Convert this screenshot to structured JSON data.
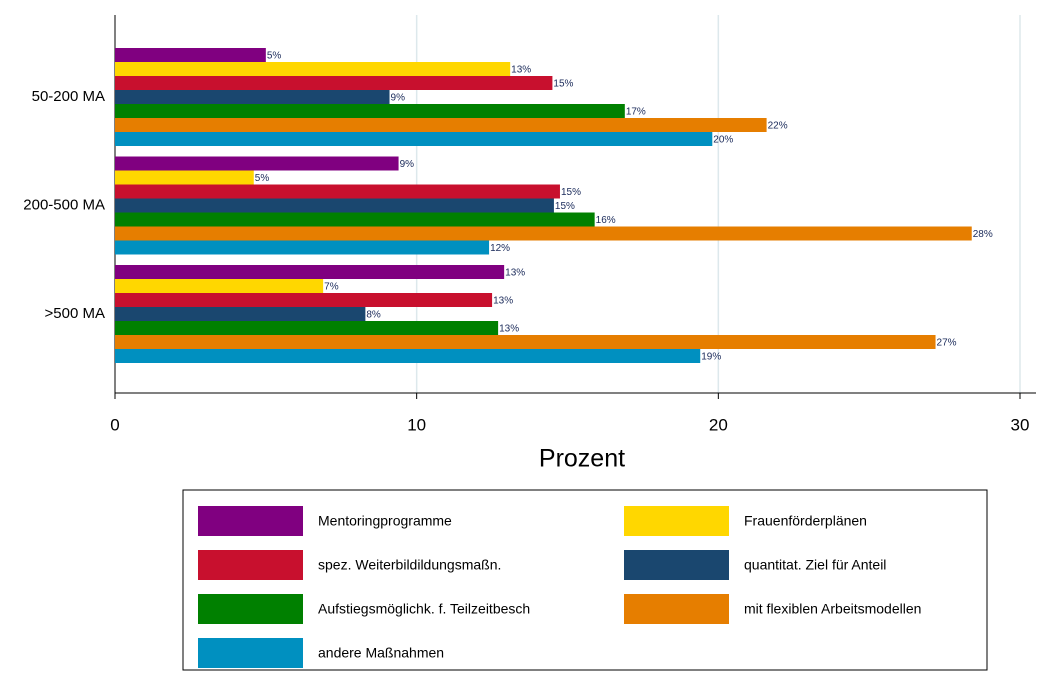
{
  "chart_data": {
    "type": "barh",
    "x_label": "Prozent",
    "categories": [
      "50-200 MA",
      "200-500 MA",
      ">500 MA"
    ],
    "xlim": [
      0,
      30
    ],
    "xticks": [
      0,
      10,
      20,
      30
    ],
    "grid": true,
    "series": [
      {
        "name": "Mentoringprogramme",
        "color": "#800080",
        "values": [
          5.0,
          9.4,
          12.9
        ],
        "value_labels": [
          "5%",
          "9%",
          "13%"
        ]
      },
      {
        "name": "Frauenförderplänen",
        "color": "#ffd700",
        "values": [
          13.1,
          4.6,
          6.9
        ],
        "value_labels": [
          "13%",
          "5%",
          "7%"
        ]
      },
      {
        "name": "spez. Weiterbildildungsmaßn.",
        "color": "#c8102e",
        "values": [
          14.5,
          14.75,
          12.5
        ],
        "value_labels": [
          "15%",
          "15%",
          "13%"
        ]
      },
      {
        "name": "quantitat. Ziel für Anteil",
        "color": "#1a476f",
        "values": [
          9.1,
          14.55,
          8.3
        ],
        "value_labels": [
          "9%",
          "15%",
          "8%"
        ]
      },
      {
        "name": "Aufstiegsmöglichk. f. Teilzeitbesch",
        "color": "#008000",
        "values": [
          16.9,
          15.9,
          12.7
        ],
        "value_labels": [
          "17%",
          "16%",
          "13%"
        ]
      },
      {
        "name": "mit flexiblen Arbeitsmodellen",
        "color": "#e67e00",
        "values": [
          21.6,
          28.4,
          27.2
        ],
        "value_labels": [
          "22%",
          "28%",
          "27%"
        ]
      },
      {
        "name": "andere Maßnahmen",
        "color": "#0090c0",
        "values": [
          19.8,
          12.4,
          19.4
        ],
        "value_labels": [
          "20%",
          "12%",
          "19%"
        ]
      }
    ]
  }
}
